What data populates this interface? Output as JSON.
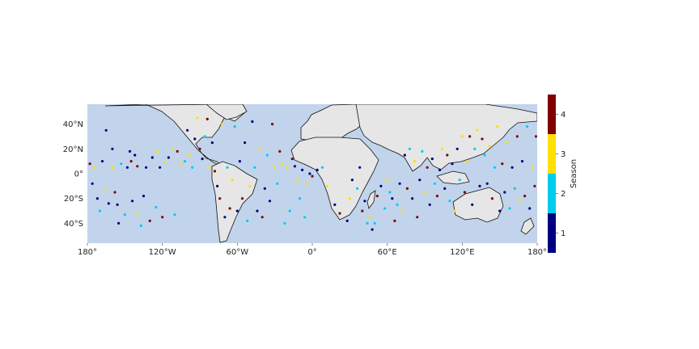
{
  "colors": {
    "ocean": "#c2d4ec",
    "land": "#e6e6e6",
    "coast": "#111111",
    "season_1": "#000080",
    "season_2": "#00ccee",
    "season_3": "#ffe000",
    "season_4": "#800000"
  },
  "map": {
    "projection": "equirectangular",
    "lon_range": [
      -180,
      180
    ],
    "lat_range": [
      -56,
      56
    ],
    "x_ticks": [
      {
        "lon": -180,
        "label": "180°"
      },
      {
        "lon": -120,
        "label": "120°W"
      },
      {
        "lon": -60,
        "label": "60°W"
      },
      {
        "lon": 0,
        "label": "0°"
      },
      {
        "lon": 60,
        "label": "60°E"
      },
      {
        "lon": 120,
        "label": "120°E"
      },
      {
        "lon": 180,
        "label": "180°"
      }
    ],
    "y_ticks": [
      {
        "lat": 40,
        "label": "40°N"
      },
      {
        "lat": 20,
        "label": "20°N"
      },
      {
        "lat": 0,
        "label": "0°"
      },
      {
        "lat": -20,
        "label": "20°S"
      },
      {
        "lat": -40,
        "label": "40°S"
      }
    ]
  },
  "colorbar": {
    "label": "Season",
    "min": 0.5,
    "max": 4.5,
    "ticks": [
      {
        "value": 1,
        "label": "1"
      },
      {
        "value": 2,
        "label": "2"
      },
      {
        "value": 3,
        "label": "3"
      },
      {
        "value": 4,
        "label": "4"
      }
    ]
  },
  "chart_data": {
    "type": "scatter",
    "title": "",
    "xlabel": "",
    "ylabel": "",
    "xlim": [
      -180,
      180
    ],
    "ylim": [
      -56,
      56
    ],
    "color_variable": "Season",
    "color_range": [
      1,
      4
    ],
    "legend": "colorbar-right",
    "points": [
      [
        -178,
        8,
        4
      ],
      [
        -176,
        -8,
        1
      ],
      [
        -174,
        5,
        3
      ],
      [
        -172,
        -20,
        1
      ],
      [
        -170,
        -30,
        2
      ],
      [
        -168,
        10,
        1
      ],
      [
        -166,
        -12,
        3
      ],
      [
        -165,
        35,
        1
      ],
      [
        -163,
        -24,
        1
      ],
      [
        -160,
        20,
        1
      ],
      [
        -160,
        5,
        3
      ],
      [
        -158,
        -15,
        4
      ],
      [
        -156,
        -25,
        1
      ],
      [
        -155,
        -40,
        1
      ],
      [
        -153,
        8,
        2
      ],
      [
        -150,
        -33,
        2
      ],
      [
        -148,
        5,
        1
      ],
      [
        -146,
        18,
        1
      ],
      [
        -145,
        10,
        4
      ],
      [
        -144,
        -22,
        1
      ],
      [
        -142,
        15,
        1
      ],
      [
        -140,
        -32,
        3
      ],
      [
        -140,
        6,
        4
      ],
      [
        -137,
        -42,
        2
      ],
      [
        -135,
        -18,
        1
      ],
      [
        -133,
        5,
        1
      ],
      [
        -130,
        -38,
        4
      ],
      [
        -128,
        13,
        1
      ],
      [
        -125,
        -27,
        2
      ],
      [
        -124,
        18,
        3
      ],
      [
        -122,
        5,
        1
      ],
      [
        -120,
        -35,
        4
      ],
      [
        -118,
        9,
        3
      ],
      [
        -115,
        13,
        1
      ],
      [
        -112,
        20,
        3
      ],
      [
        -110,
        -33,
        2
      ],
      [
        -108,
        18,
        4
      ],
      [
        -105,
        8,
        3
      ],
      [
        -102,
        10,
        2
      ],
      [
        -100,
        35,
        1
      ],
      [
        -98,
        15,
        3
      ],
      [
        -96,
        5,
        2
      ],
      [
        -94,
        28,
        1
      ],
      [
        -92,
        45,
        3
      ],
      [
        -90,
        20,
        4
      ],
      [
        -88,
        12,
        1
      ],
      [
        -86,
        30,
        2
      ],
      [
        -84,
        44,
        4
      ],
      [
        -82,
        5,
        3
      ],
      [
        -80,
        25,
        1
      ],
      [
        -78,
        2,
        4
      ],
      [
        -76,
        -10,
        1
      ],
      [
        -74,
        -20,
        4
      ],
      [
        -72,
        40,
        3
      ],
      [
        -70,
        -35,
        1
      ],
      [
        -68,
        5,
        2
      ],
      [
        -66,
        -28,
        4
      ],
      [
        -64,
        -5,
        3
      ],
      [
        -62,
        38,
        2
      ],
      [
        -60,
        -30,
        1
      ],
      [
        -58,
        10,
        1
      ],
      [
        -56,
        -20,
        4
      ],
      [
        -54,
        25,
        1
      ],
      [
        -52,
        -38,
        2
      ],
      [
        -50,
        -10,
        3
      ],
      [
        -48,
        42,
        1
      ],
      [
        -46,
        5,
        2
      ],
      [
        -44,
        -30,
        1
      ],
      [
        -42,
        20,
        3
      ],
      [
        -40,
        -35,
        4
      ],
      [
        -38,
        -12,
        1
      ],
      [
        -36,
        15,
        2
      ],
      [
        -34,
        -22,
        1
      ],
      [
        -32,
        40,
        4
      ],
      [
        -30,
        5,
        3
      ],
      [
        -28,
        -8,
        2
      ],
      [
        -26,
        18,
        4
      ],
      [
        -24,
        8,
        3
      ],
      [
        -22,
        -40,
        2
      ],
      [
        -20,
        5,
        3
      ],
      [
        -18,
        -30,
        2
      ],
      [
        -16,
        12,
        4
      ],
      [
        -14,
        6,
        1
      ],
      [
        -12,
        -5,
        3
      ],
      [
        -10,
        -20,
        2
      ],
      [
        -8,
        3,
        1
      ],
      [
        -6,
        -35,
        2
      ],
      [
        -4,
        -8,
        3
      ],
      [
        -2,
        0,
        1
      ],
      [
        0,
        -2,
        4
      ],
      [
        4,
        3,
        1
      ],
      [
        8,
        5,
        2
      ],
      [
        12,
        -10,
        3
      ],
      [
        18,
        -25,
        1
      ],
      [
        22,
        -32,
        4
      ],
      [
        28,
        -38,
        1
      ],
      [
        30,
        -20,
        3
      ],
      [
        32,
        -5,
        1
      ],
      [
        36,
        -12,
        2
      ],
      [
        38,
        5,
        1
      ],
      [
        40,
        -30,
        4
      ],
      [
        42,
        -22,
        1
      ],
      [
        44,
        -40,
        2
      ],
      [
        46,
        -35,
        3
      ],
      [
        48,
        -45,
        1
      ],
      [
        50,
        -40,
        2
      ],
      [
        52,
        -18,
        4
      ],
      [
        55,
        -10,
        1
      ],
      [
        58,
        -28,
        2
      ],
      [
        60,
        -5,
        3
      ],
      [
        62,
        -15,
        2
      ],
      [
        64,
        -20,
        1
      ],
      [
        66,
        -38,
        4
      ],
      [
        68,
        -25,
        2
      ],
      [
        70,
        -8,
        1
      ],
      [
        72,
        -30,
        3
      ],
      [
        74,
        15,
        1
      ],
      [
        76,
        -12,
        4
      ],
      [
        78,
        20,
        2
      ],
      [
        80,
        -20,
        1
      ],
      [
        82,
        10,
        3
      ],
      [
        84,
        -35,
        4
      ],
      [
        86,
        -5,
        1
      ],
      [
        88,
        18,
        2
      ],
      [
        90,
        -15,
        3
      ],
      [
        92,
        5,
        4
      ],
      [
        94,
        -25,
        1
      ],
      [
        96,
        12,
        1
      ],
      [
        98,
        -8,
        2
      ],
      [
        100,
        -18,
        4
      ],
      [
        102,
        3,
        1
      ],
      [
        104,
        20,
        3
      ],
      [
        106,
        -12,
        1
      ],
      [
        108,
        15,
        4
      ],
      [
        110,
        -22,
        2
      ],
      [
        112,
        8,
        1
      ],
      [
        114,
        -30,
        3
      ],
      [
        116,
        20,
        1
      ],
      [
        118,
        -5,
        2
      ],
      [
        120,
        30,
        3
      ],
      [
        122,
        -15,
        4
      ],
      [
        124,
        10,
        3
      ],
      [
        126,
        30,
        4
      ],
      [
        128,
        -25,
        1
      ],
      [
        130,
        20,
        2
      ],
      [
        132,
        35,
        3
      ],
      [
        134,
        -10,
        1
      ],
      [
        136,
        28,
        4
      ],
      [
        138,
        15,
        2
      ],
      [
        140,
        -8,
        1
      ],
      [
        142,
        22,
        3
      ],
      [
        144,
        -20,
        4
      ],
      [
        146,
        5,
        2
      ],
      [
        148,
        38,
        3
      ],
      [
        150,
        -30,
        1
      ],
      [
        152,
        8,
        4
      ],
      [
        154,
        -15,
        1
      ],
      [
        156,
        25,
        3
      ],
      [
        158,
        -28,
        2
      ],
      [
        160,
        5,
        1
      ],
      [
        162,
        -12,
        2
      ],
      [
        164,
        30,
        4
      ],
      [
        166,
        -22,
        3
      ],
      [
        168,
        10,
        1
      ],
      [
        170,
        -18,
        4
      ],
      [
        172,
        38,
        2
      ],
      [
        174,
        -28,
        1
      ],
      [
        176,
        5,
        3
      ],
      [
        178,
        -10,
        4
      ],
      [
        179,
        30,
        4
      ]
    ]
  }
}
